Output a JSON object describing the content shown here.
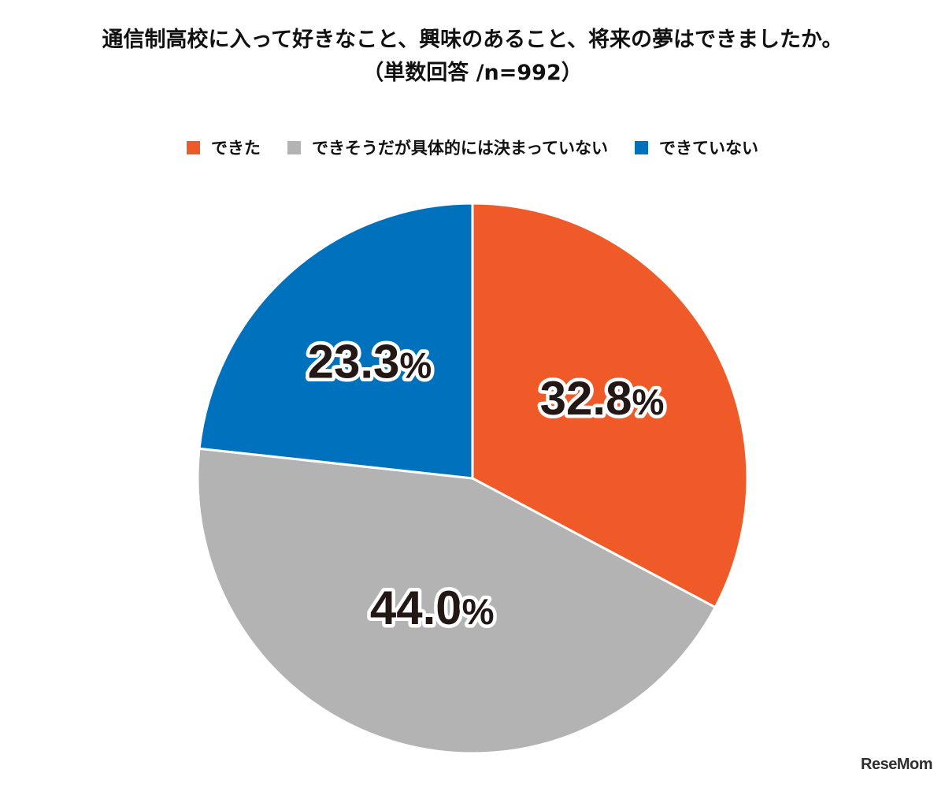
{
  "title": {
    "line1": "通信制高校に入って好きなこと、興味のあること、将来の夢はできましたか。",
    "line2": "（単数回答 /n=992）"
  },
  "chart_data": {
    "type": "pie",
    "title": "通信制高校に入って好きなこと、興味のあること、将来の夢はできましたか。",
    "subtitle": "（単数回答 /n=992）",
    "slices": [
      {
        "label": "できた",
        "value": 32.8,
        "display": "32.8%",
        "color": "#f05a28"
      },
      {
        "label": "できそうだが具体的には決まっていない",
        "value": 44.0,
        "display": "44.0%",
        "color": "#b3b3b3"
      },
      {
        "label": "できていない",
        "value": 23.3,
        "display": "23.3%",
        "color": "#0071bc"
      }
    ],
    "start": "12 o'clock",
    "direction": "clockwise",
    "legend": "top-center"
  },
  "branding": {
    "logo": "ReseMom"
  }
}
